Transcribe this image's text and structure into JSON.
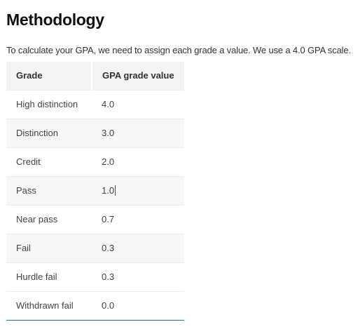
{
  "heading": "Methodology",
  "intro": "To calculate your GPA, we need to assign each grade a value. We use a 4.0 GPA scale.",
  "table": {
    "headers": {
      "grade": "Grade",
      "value": "GPA grade value"
    },
    "rows": [
      {
        "grade": "High distinction",
        "value": "4.0"
      },
      {
        "grade": "Distinction",
        "value": "3.0"
      },
      {
        "grade": "Credit",
        "value": "2.0"
      },
      {
        "grade": "Pass",
        "value": "1.0"
      },
      {
        "grade": "Near pass",
        "value": "0.7"
      },
      {
        "grade": "Fail",
        "value": "0.3"
      },
      {
        "grade": "Hurdle fail",
        "value": "0.3"
      },
      {
        "grade": "Withdrawn fail",
        "value": "0.0"
      }
    ]
  },
  "colors": {
    "header_bg": "#f3f3f3",
    "alt_row_bg": "#f7f7f7",
    "table_bottom_border": "#2c6f84"
  }
}
